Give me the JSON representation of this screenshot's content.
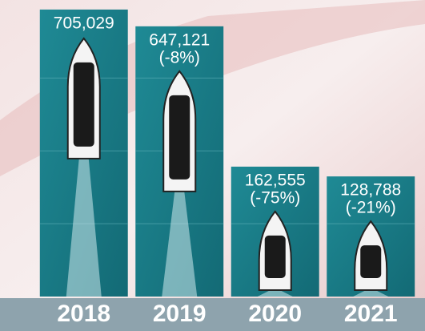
{
  "chart_data": {
    "type": "bar",
    "categories": [
      "2018",
      "2019",
      "2020",
      "2021"
    ],
    "values": [
      705029,
      647121,
      162555,
      128788
    ],
    "value_labels": [
      "705,029",
      "647,121",
      "162,555",
      "128,788"
    ],
    "change_labels": [
      null,
      "(-8%)",
      "(-75%)",
      "(-21%)"
    ],
    "color": "#1b7c88",
    "ylim": [
      -286000,
      720000
    ]
  }
}
